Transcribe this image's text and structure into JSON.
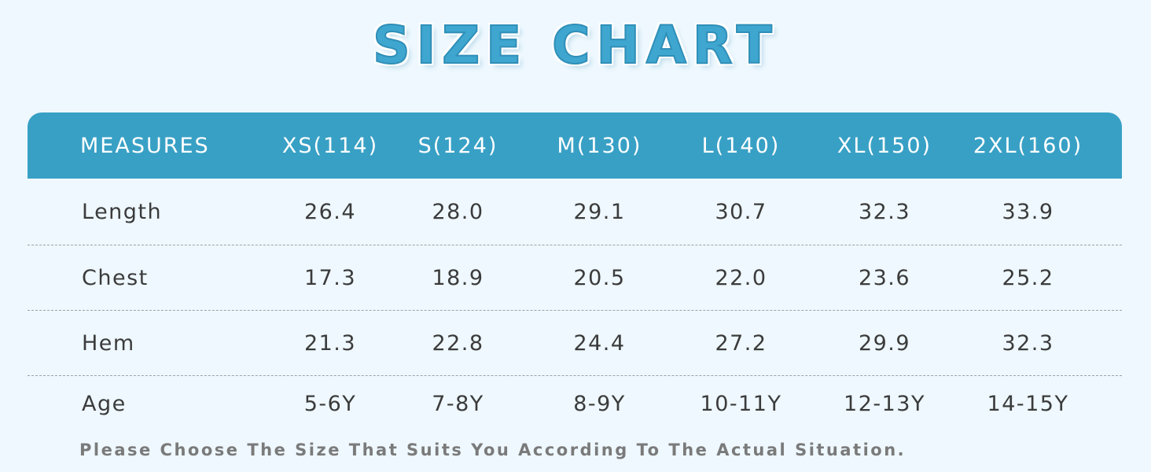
{
  "title": "SIZE CHART",
  "header": {
    "measures": "MEASURES",
    "sizes": [
      "XS(114)",
      "S(124)",
      "M(130)",
      "L(140)",
      "XL(150)",
      "2XL(160)"
    ]
  },
  "rows": [
    {
      "label": "Length",
      "values": [
        "26.4",
        "28.0",
        "29.1",
        "30.7",
        "32.3",
        "33.9"
      ]
    },
    {
      "label": "Chest",
      "values": [
        "17.3",
        "18.9",
        "20.5",
        "22.0",
        "23.6",
        "25.2"
      ]
    },
    {
      "label": "Hem",
      "values": [
        "21.3",
        "22.8",
        "24.4",
        "27.2",
        "29.9",
        "32.3"
      ]
    },
    {
      "label": "Age",
      "values": [
        "5-6Y",
        "7-8Y",
        "8-9Y",
        "10-11Y",
        "12-13Y",
        "14-15Y"
      ]
    }
  ],
  "footnote": "Please Choose The Size That Suits You According To The Actual Situation.",
  "colors": {
    "header_bg": "#38a0c5",
    "title": "#3fa6cf",
    "background": "#eef8fe"
  }
}
